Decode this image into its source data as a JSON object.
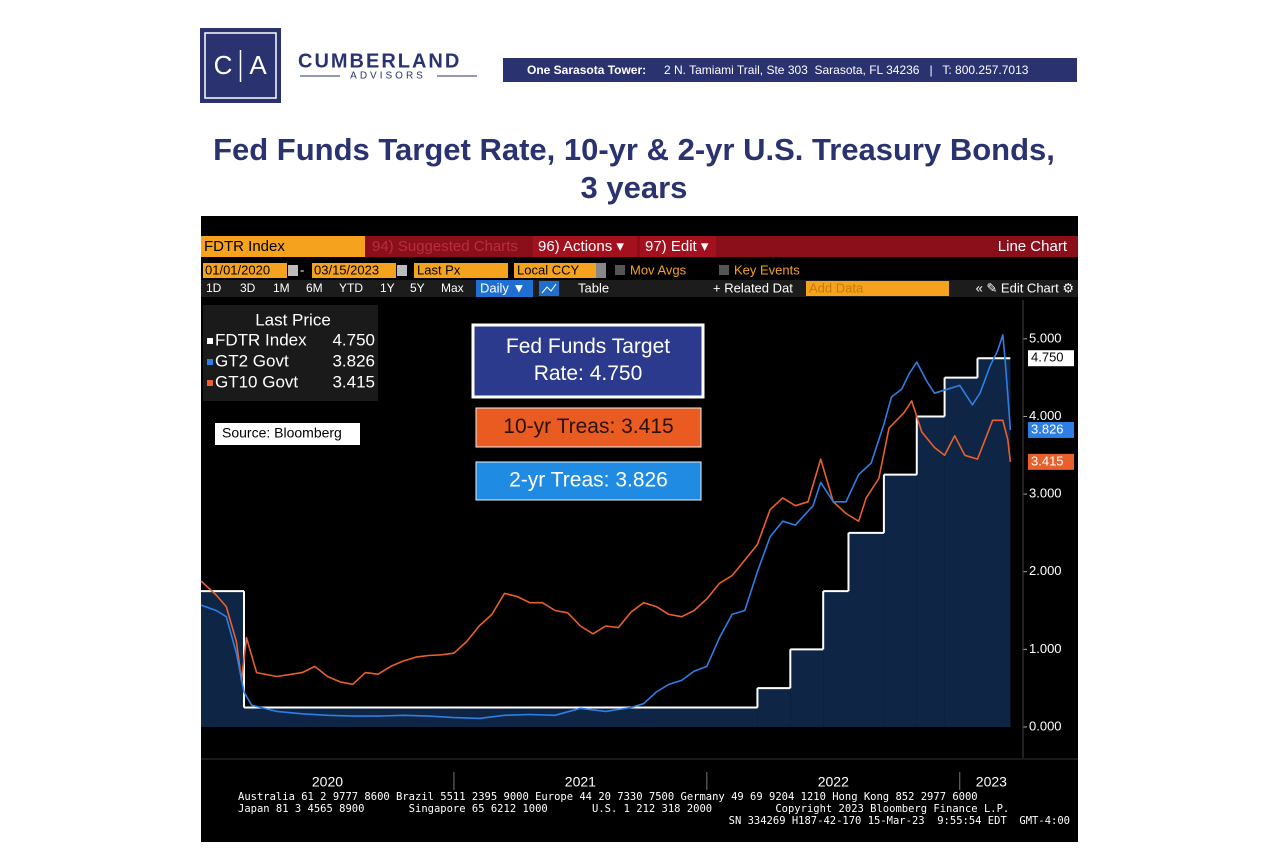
{
  "header": {
    "logo": [
      "C",
      "A"
    ],
    "company": "CUMBERLAND",
    "company_sub": "ADVISORS",
    "address_label": "One Sarasota Tower:",
    "address": "2 N. Tamiami Trail, Ste 303  Sarasota, FL 34236   |   T: 800.257.7013"
  },
  "title": [
    "Fed Funds Target Rate, 10-yr & 2-yr U.S. Treasury Bonds,",
    "3 years"
  ],
  "terminal": {
    "security": "FDTR Index",
    "menu": [
      "94) Suggested Charts",
      "96) Actions ▾",
      "97) Edit ▾"
    ],
    "view": "Line Chart",
    "start_date": "01/01/2020",
    "end_date": "03/15/2023",
    "field": "Last Px",
    "currency": "Local CCY",
    "options": [
      "Mov Avgs",
      "Key Events"
    ],
    "periods": [
      "1D",
      "3D",
      "1M",
      "6M",
      "YTD",
      "1Y",
      "5Y",
      "Max"
    ],
    "frequency": "Daily ▼",
    "table": "Table",
    "related": "+ Related Dat",
    "add_data": "Add Data",
    "edit_chart": "« ✎ Edit Chart ⚙",
    "footer": [
      "Australia 61 2 9777 8600 Brazil 5511 2395 9000 Europe 44 20 7330 7500 Germany 49 69 9204 1210 Hong Kong 852 2977 6000",
      "Japan 81 3 4565 8900       Singapore 65 6212 1000       U.S. 1 212 318 2000          Copyright 2023 Bloomberg Finance L.P.",
      "SN 334269 H187-42-170 15-Mar-23  9:55:54 EDT  GMT-4:00"
    ]
  },
  "chart_data": {
    "type": "line",
    "legend_title": "Last Price",
    "source": "Source: Bloomberg",
    "xlim": [
      2020,
      2023.25
    ],
    "xticks": [
      2020,
      2021,
      2022,
      2023
    ],
    "ylim": [
      -0.4,
      5.5
    ],
    "yticks": [
      {
        "value": 0,
        "label": "0.000"
      },
      {
        "value": 1,
        "label": "1.000"
      },
      {
        "value": 2,
        "label": "2.000"
      },
      {
        "value": 3,
        "label": "3.000"
      },
      {
        "value": 4,
        "label": "4.000"
      },
      {
        "value": 5,
        "label": "5.000"
      }
    ],
    "annotations": [
      {
        "lines": [
          "Fed Funds Target",
          "Rate: 4.750"
        ],
        "color": "#2b3a8c"
      },
      {
        "lines": [
          "10-yr Treas: 3.415"
        ],
        "color": "#ea5b22"
      },
      {
        "lines": [
          "2-yr Treas: 3.826"
        ],
        "color": "#1f8be3"
      }
    ],
    "series": [
      {
        "name": "FDTR Index",
        "color": "#ffffff",
        "step": true,
        "area": "#0f2545",
        "x": [
          2020.0,
          2020.17,
          2022.2,
          2022.33,
          2022.46,
          2022.56,
          2022.7,
          2022.83,
          2022.94,
          2023.07,
          2023.2
        ],
        "values": [
          1.75,
          0.25,
          0.5,
          1.0,
          1.75,
          2.5,
          3.25,
          4.0,
          4.5,
          4.75,
          4.75
        ],
        "value_labels": [
          null,
          null,
          null,
          null,
          null,
          null,
          null,
          null,
          null,
          null,
          "4.750"
        ]
      },
      {
        "name": "GT10 Govt",
        "color": "#e8602c",
        "x": [
          2020.0,
          2020.06,
          2020.1,
          2020.14,
          2020.16,
          2020.18,
          2020.22,
          2020.3,
          2020.4,
          2020.45,
          2020.5,
          2020.55,
          2020.6,
          2020.65,
          2020.7,
          2020.75,
          2020.8,
          2020.85,
          2020.9,
          2020.95,
          2021.0,
          2021.05,
          2021.1,
          2021.15,
          2021.2,
          2021.25,
          2021.3,
          2021.35,
          2021.4,
          2021.45,
          2021.5,
          2021.55,
          2021.6,
          2021.65,
          2021.7,
          2021.75,
          2021.8,
          2021.85,
          2021.9,
          2021.95,
          2022.0,
          2022.05,
          2022.1,
          2022.15,
          2022.2,
          2022.25,
          2022.3,
          2022.35,
          2022.4,
          2022.45,
          2022.5,
          2022.55,
          2022.6,
          2022.63,
          2022.68,
          2022.72,
          2022.78,
          2022.81,
          2022.85,
          2022.9,
          2022.94,
          2022.98,
          2023.02,
          2023.07,
          2023.1,
          2023.13,
          2023.17,
          2023.19,
          2023.2
        ],
        "values": [
          1.88,
          1.7,
          1.55,
          1.1,
          0.6,
          1.15,
          0.7,
          0.65,
          0.7,
          0.78,
          0.65,
          0.58,
          0.55,
          0.7,
          0.68,
          0.78,
          0.85,
          0.9,
          0.92,
          0.93,
          0.95,
          1.1,
          1.3,
          1.45,
          1.72,
          1.68,
          1.6,
          1.6,
          1.5,
          1.47,
          1.3,
          1.2,
          1.3,
          1.28,
          1.48,
          1.6,
          1.55,
          1.45,
          1.42,
          1.5,
          1.65,
          1.85,
          1.95,
          2.15,
          2.35,
          2.8,
          2.95,
          2.85,
          2.9,
          3.45,
          2.9,
          2.75,
          2.65,
          2.95,
          3.2,
          3.85,
          4.05,
          4.2,
          3.8,
          3.6,
          3.5,
          3.75,
          3.5,
          3.45,
          3.7,
          3.95,
          3.95,
          3.7,
          3.415
        ],
        "value_labels": [
          null,
          null,
          null,
          null,
          null,
          null,
          null,
          null,
          null,
          null,
          null,
          null,
          null,
          null,
          null,
          null,
          null,
          null,
          null,
          null,
          null,
          null,
          null,
          null,
          null,
          null,
          null,
          null,
          null,
          null,
          null,
          null,
          null,
          null,
          null,
          null,
          null,
          null,
          null,
          null,
          null,
          null,
          null,
          null,
          null,
          null,
          null,
          null,
          null,
          null,
          null,
          null,
          null,
          null,
          null,
          null,
          null,
          null,
          null,
          null,
          null,
          null,
          null,
          null,
          null,
          null,
          null,
          null,
          "3.415"
        ]
      },
      {
        "name": "GT2 Govt",
        "color": "#2d7fe3",
        "x": [
          2020.0,
          2020.06,
          2020.1,
          2020.14,
          2020.17,
          2020.2,
          2020.3,
          2020.4,
          2020.5,
          2020.6,
          2020.7,
          2020.8,
          2020.9,
          2021.0,
          2021.1,
          2021.2,
          2021.3,
          2021.4,
          2021.5,
          2021.6,
          2021.7,
          2021.75,
          2021.8,
          2021.85,
          2021.9,
          2021.95,
          2022.0,
          2022.05,
          2022.1,
          2022.15,
          2022.2,
          2022.25,
          2022.3,
          2022.35,
          2022.42,
          2022.45,
          2022.5,
          2022.55,
          2022.6,
          2022.65,
          2022.7,
          2022.73,
          2022.77,
          2022.8,
          2022.83,
          2022.87,
          2022.9,
          2022.95,
          2023.0,
          2023.05,
          2023.08,
          2023.12,
          2023.15,
          2023.17,
          2023.18,
          2023.2
        ],
        "values": [
          1.57,
          1.5,
          1.42,
          0.95,
          0.45,
          0.28,
          0.2,
          0.17,
          0.15,
          0.14,
          0.14,
          0.15,
          0.14,
          0.12,
          0.11,
          0.15,
          0.16,
          0.15,
          0.24,
          0.2,
          0.25,
          0.3,
          0.45,
          0.55,
          0.6,
          0.72,
          0.78,
          1.15,
          1.45,
          1.5,
          2.0,
          2.45,
          2.65,
          2.6,
          2.85,
          3.15,
          2.9,
          2.9,
          3.25,
          3.4,
          3.9,
          4.25,
          4.35,
          4.55,
          4.7,
          4.45,
          4.3,
          4.35,
          4.4,
          4.15,
          4.3,
          4.65,
          4.85,
          5.05,
          4.7,
          3.826
        ],
        "value_labels": [
          null,
          null,
          null,
          null,
          null,
          null,
          null,
          null,
          null,
          null,
          null,
          null,
          null,
          null,
          null,
          null,
          null,
          null,
          null,
          null,
          null,
          null,
          null,
          null,
          null,
          null,
          null,
          null,
          null,
          null,
          null,
          null,
          null,
          null,
          null,
          null,
          null,
          null,
          null,
          null,
          null,
          null,
          null,
          null,
          null,
          null,
          null,
          null,
          null,
          null,
          null,
          null,
          null,
          null,
          null,
          "3.826"
        ]
      }
    ]
  }
}
